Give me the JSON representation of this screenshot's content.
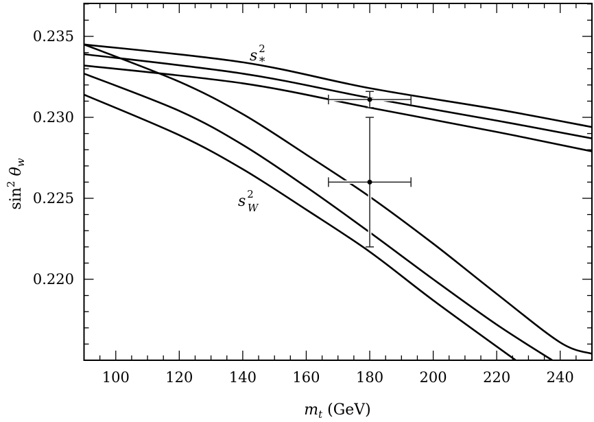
{
  "chart_data": {
    "type": "line",
    "title": "",
    "xlabel": "m_t (GeV)",
    "ylabel": "sin^2 θ_w",
    "xlim": [
      90,
      250
    ],
    "ylim": [
      0.215,
      0.237
    ],
    "x_ticks": [
      100,
      120,
      140,
      160,
      180,
      200,
      220,
      240
    ],
    "y_ticks": [
      0.22,
      0.225,
      0.23,
      0.235
    ],
    "x_tick_labels": [
      "100",
      "120",
      "140",
      "160",
      "180",
      "200",
      "220",
      "240"
    ],
    "y_tick_labels": [
      "0.220",
      "0.225",
      "0.230",
      "0.235"
    ],
    "grid": false,
    "legend": null,
    "annotations": [
      {
        "text": "s*^2",
        "x": 143,
        "y": 0.2352,
        "target": "s_star_band"
      },
      {
        "text": "s_W^2",
        "x": 138,
        "y": 0.2248,
        "target": "s_W_band"
      }
    ],
    "series": [
      {
        "name": "s*^2 upper",
        "group": "s_star",
        "points": [
          [
            90,
            0.2345
          ],
          [
            140,
            0.2334
          ],
          [
            180,
            0.2318
          ],
          [
            220,
            0.2305
          ],
          [
            250,
            0.2294
          ]
        ]
      },
      {
        "name": "s*^2 central",
        "group": "s_star",
        "points": [
          [
            90,
            0.2339
          ],
          [
            140,
            0.2327
          ],
          [
            180,
            0.2312
          ],
          [
            220,
            0.2298
          ],
          [
            250,
            0.2287
          ]
        ]
      },
      {
        "name": "s*^2 lower",
        "group": "s_star",
        "points": [
          [
            90,
            0.2332
          ],
          [
            140,
            0.2321
          ],
          [
            180,
            0.2306
          ],
          [
            220,
            0.2291
          ],
          [
            250,
            0.2279
          ]
        ]
      },
      {
        "name": "s_W^2 upper",
        "group": "s_W",
        "points": [
          [
            90,
            0.2345
          ],
          [
            120,
            0.2322
          ],
          [
            140,
            0.2302
          ],
          [
            160,
            0.2277
          ],
          [
            180,
            0.2251
          ],
          [
            200,
            0.2222
          ],
          [
            220,
            0.2191
          ],
          [
            240,
            0.2161
          ],
          [
            250,
            0.2154
          ]
        ]
      },
      {
        "name": "s_W^2 central",
        "group": "s_W",
        "points": [
          [
            90,
            0.2327
          ],
          [
            120,
            0.2304
          ],
          [
            140,
            0.2283
          ],
          [
            160,
            0.2257
          ],
          [
            180,
            0.2229
          ],
          [
            200,
            0.22
          ],
          [
            220,
            0.2172
          ],
          [
            237.5,
            0.215
          ]
        ]
      },
      {
        "name": "s_W^2 lower",
        "group": "s_W",
        "points": [
          [
            90,
            0.2314
          ],
          [
            120,
            0.2289
          ],
          [
            140,
            0.2268
          ],
          [
            160,
            0.2243
          ],
          [
            180,
            0.2217
          ],
          [
            200,
            0.2187
          ],
          [
            226,
            0.215
          ]
        ]
      }
    ],
    "error_points": [
      {
        "name": "s*^2 measurement",
        "x": 180,
        "y": 0.2311,
        "xerr": [
          167,
          193
        ],
        "yerr": [
          0.2306,
          0.2316
        ]
      },
      {
        "name": "s_W^2 measurement",
        "x": 180,
        "y": 0.226,
        "xerr": [
          167,
          193
        ],
        "yerr": [
          0.222,
          0.23
        ]
      }
    ]
  }
}
